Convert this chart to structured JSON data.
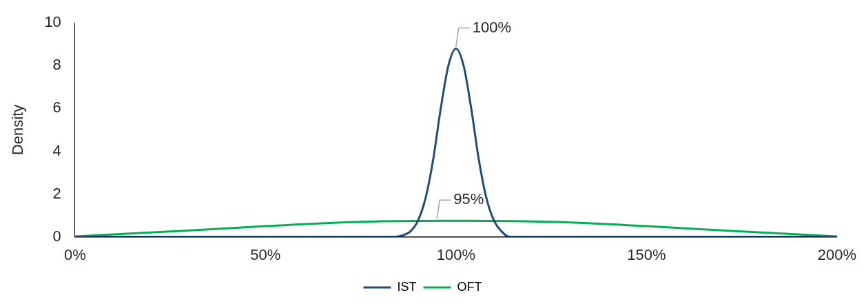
{
  "chart_data": {
    "type": "line",
    "ylabel": "Density",
    "xlim": [
      0,
      200
    ],
    "xticks": [
      {
        "value": 0,
        "label": "0%"
      },
      {
        "value": 50,
        "label": "50%"
      },
      {
        "value": 100,
        "label": "100%"
      },
      {
        "value": 150,
        "label": "150%"
      },
      {
        "value": 200,
        "label": "200%"
      }
    ],
    "ylim": [
      0,
      10
    ],
    "yticks": [
      0,
      2,
      4,
      6,
      8,
      10
    ],
    "grid": false,
    "legend": "bottom",
    "marker": "none",
    "line_style": "solid",
    "series": [
      {
        "name": "IST",
        "color": "#1f4e79",
        "x": [
          0,
          84,
          86,
          88,
          90,
          92,
          94,
          96,
          98,
          100,
          102,
          104,
          106,
          108,
          110,
          112,
          114,
          200
        ],
        "values": [
          0,
          0,
          0.07,
          0.25,
          0.75,
          1.8,
          3.6,
          6,
          8,
          8.8,
          8,
          6,
          3.6,
          1.8,
          0.75,
          0.25,
          0,
          0
        ]
      },
      {
        "name": "OFT",
        "color": "#00b050",
        "x": [
          0,
          25,
          50,
          75,
          100,
          125,
          150,
          175,
          200
        ],
        "values": [
          0.02,
          0.25,
          0.5,
          0.7,
          0.75,
          0.7,
          0.5,
          0.25,
          0.02
        ]
      }
    ],
    "annotations": [
      {
        "text": "100%",
        "x": 100,
        "y": 8.8
      },
      {
        "text": "95%",
        "x": 95,
        "y": 0.75
      }
    ]
  }
}
